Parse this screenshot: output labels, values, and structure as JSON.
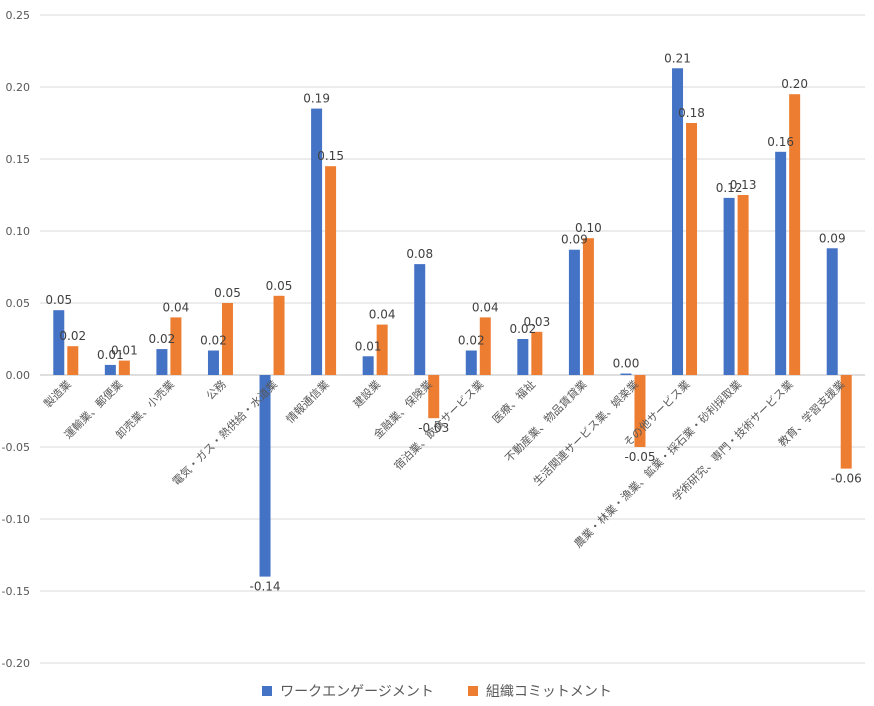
{
  "chart_data": {
    "type": "bar",
    "ylim": [
      -0.2,
      0.25
    ],
    "yticks": [
      "0.25",
      "0.20",
      "0.15",
      "0.10",
      "0.05",
      "0.00",
      "-0.05",
      "-0.10",
      "-0.15",
      "-0.20"
    ],
    "ytick_values": [
      0.25,
      0.2,
      0.15,
      0.1,
      0.05,
      0.0,
      -0.05,
      -0.1,
      -0.15,
      -0.2
    ],
    "grid": true,
    "legend_position": "bottom",
    "categories": [
      "製造業",
      "運輸業、郵便業",
      "卸売業、小売業",
      "公務",
      "電気・ガス・熱供給・水道業",
      "情報通信業",
      "建設業",
      "金融業、保険業",
      "宿泊業、飲食サービス業",
      "医療、福祉",
      "不動産業、物品賃貸業",
      "生活関連サービス業、娯楽業",
      "その他サービス業",
      "農業・林業・漁業、鉱業・採石業・砂利採取業",
      "学術研究、専門・技術サービス業",
      "教育、学習支援業"
    ],
    "series": [
      {
        "name": "ワークエンゲージメント",
        "color": "#4472C4",
        "values": [
          0.045,
          0.007,
          0.018,
          0.017,
          -0.14,
          0.185,
          0.013,
          0.077,
          0.017,
          0.025,
          0.087,
          0.001,
          0.213,
          0.123,
          0.155,
          0.088
        ],
        "labels": [
          "0.05",
          "0.01",
          "0.02",
          "0.02",
          "-0.14",
          "0.19",
          "0.01",
          "0.08",
          "0.02",
          "0.02",
          "0.09",
          "0.00",
          "0.21",
          "0.12",
          "0.16",
          "0.09"
        ]
      },
      {
        "name": "組織コミットメント",
        "color": "#ED7D31",
        "values": [
          0.02,
          0.01,
          0.04,
          0.05,
          0.055,
          0.145,
          0.035,
          -0.03,
          0.04,
          0.03,
          0.095,
          -0.05,
          0.175,
          0.125,
          0.195,
          -0.065
        ],
        "labels": [
          "0.02",
          "0.01",
          "0.04",
          "0.05",
          "0.05",
          "0.15",
          "0.04",
          "-0.03",
          "0.04",
          "0.03",
          "0.10",
          "-0.05",
          "0.18",
          "0.13",
          "0.20",
          "-0.06"
        ]
      }
    ]
  }
}
